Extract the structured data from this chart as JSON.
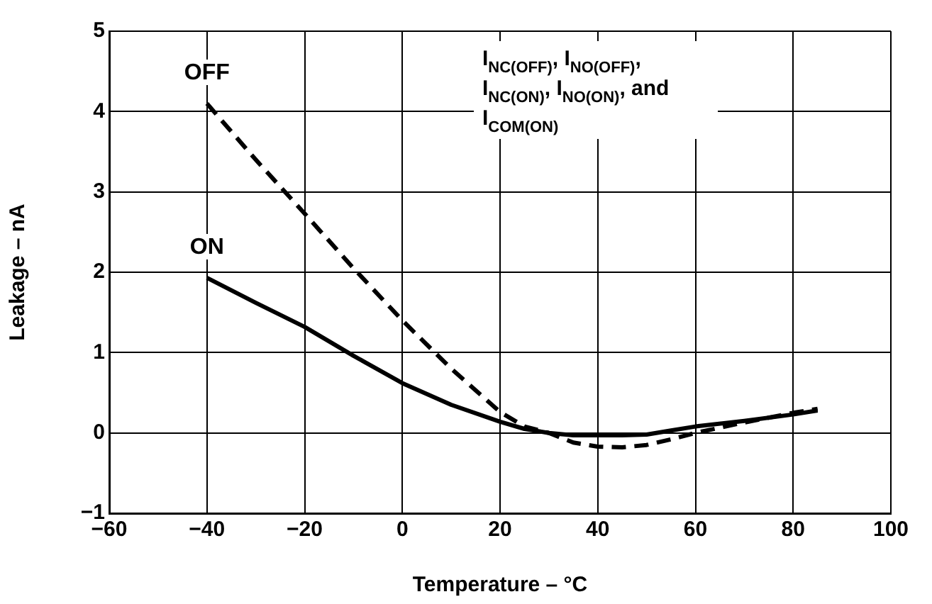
{
  "chart_data": {
    "type": "line",
    "xlabel": "Temperature – °C",
    "ylabel": "Leakage – nA",
    "xlim": [
      -60,
      100
    ],
    "xticks": [
      -60,
      -40,
      -20,
      0,
      20,
      40,
      60,
      80,
      100
    ],
    "ylim": [
      -1,
      5
    ],
    "yticks": [
      -1,
      0,
      1,
      2,
      3,
      4,
      5
    ],
    "grid": true,
    "legend": false,
    "marker": "none",
    "annotations": [
      "I$_{NC(OFF)}$, I$_{NO(OFF)}$, I$_{NC(ON)}$, I$_{NO(ON)}$, and I$_{COM(ON)}$"
    ],
    "series": [
      {
        "name": "OFF",
        "color": "#000000",
        "line_style": "dashed",
        "x": [
          -40,
          -30,
          -20,
          -10,
          0,
          10,
          20,
          25,
          30,
          35,
          40,
          45,
          50,
          55,
          60,
          70,
          80,
          85
        ],
        "values": [
          4.1,
          3.4,
          2.73,
          2.05,
          1.4,
          0.8,
          0.26,
          0.08,
          0.0,
          -0.12,
          -0.17,
          -0.18,
          -0.15,
          -0.08,
          0.0,
          0.13,
          0.25,
          0.3
        ]
      },
      {
        "name": "ON",
        "color": "#000000",
        "line_style": "solid",
        "x": [
          -40,
          -30,
          -20,
          -10,
          0,
          10,
          20,
          25,
          30,
          35,
          40,
          45,
          50,
          55,
          60,
          70,
          80,
          85
        ],
        "values": [
          1.93,
          1.62,
          1.32,
          0.96,
          0.62,
          0.35,
          0.14,
          0.05,
          0.0,
          -0.03,
          -0.03,
          -0.03,
          -0.02,
          0.03,
          0.08,
          0.15,
          0.23,
          0.28
        ]
      }
    ]
  }
}
